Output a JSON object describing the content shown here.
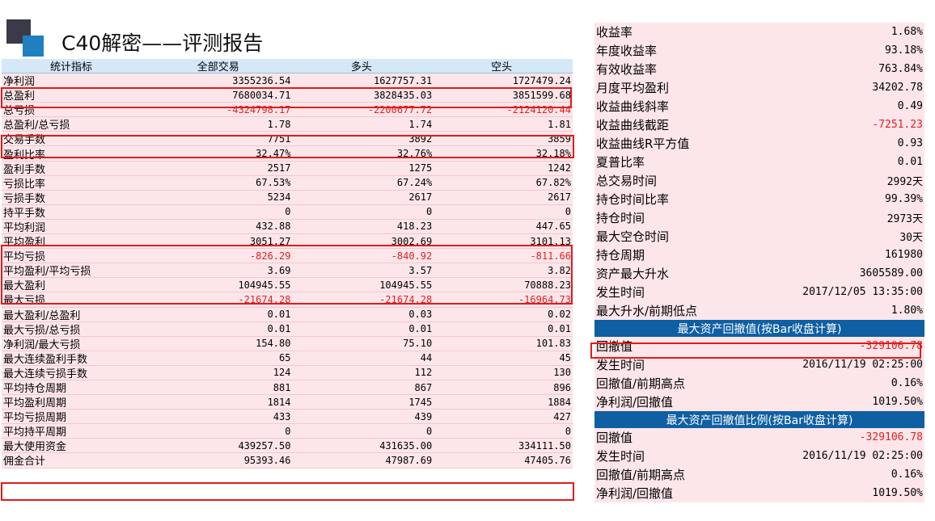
{
  "title": "C40解密——评测报告",
  "left_table": {
    "headers": [
      "统计指标",
      "全部交易",
      "多头",
      "空头"
    ],
    "rows": [
      [
        "净利润",
        "3355236.54",
        "1627757.31",
        "1727479.24"
      ],
      [
        "总盈利",
        "7680034.71",
        "3828435.03",
        "3851599.68"
      ],
      [
        "总亏损",
        "-4324798.17",
        "-2200677.72",
        "-2124120.44"
      ],
      [
        "总盈利/总亏损",
        "1.78",
        "1.74",
        "1.81"
      ],
      [
        "交易手数",
        "7751",
        "3892",
        "3859"
      ],
      [
        "盈利比率",
        "32.47%",
        "32.76%",
        "32.18%"
      ],
      [
        "盈利手数",
        "2517",
        "1275",
        "1242"
      ],
      [
        "亏损比率",
        "67.53%",
        "67.24%",
        "67.82%"
      ],
      [
        "亏损手数",
        "5234",
        "2617",
        "2617"
      ],
      [
        "持平手数",
        "0",
        "0",
        "0"
      ],
      [
        "平均利润",
        "432.88",
        "418.23",
        "447.65"
      ],
      [
        "平均盈利",
        "3051.27",
        "3002.69",
        "3101.13"
      ],
      [
        "平均亏损",
        "-826.29",
        "-840.92",
        "-811.66"
      ],
      [
        "平均盈利/平均亏损",
        "3.69",
        "3.57",
        "3.82"
      ],
      [
        "最大盈利",
        "104945.55",
        "104945.55",
        "70888.23"
      ],
      [
        "最大亏损",
        "-21674.28",
        "-21674.28",
        "-16964.73"
      ],
      [
        "最大盈利/总盈利",
        "0.01",
        "0.03",
        "0.02"
      ],
      [
        "最大亏损/总亏损",
        "0.01",
        "0.01",
        "0.01"
      ],
      [
        "净利润/最大亏损",
        "154.80",
        "75.10",
        "101.83"
      ],
      [
        "最大连续盈利手数",
        "65",
        "44",
        "45"
      ],
      [
        "最大连续亏损手数",
        "124",
        "112",
        "130"
      ],
      [
        "平均持仓周期",
        "881",
        "867",
        "896"
      ],
      [
        "平均盈利周期",
        "1814",
        "1745",
        "1884"
      ],
      [
        "平均亏损周期",
        "433",
        "439",
        "427"
      ],
      [
        "平均持平周期",
        "0",
        "0",
        "0"
      ],
      [
        "最大使用资金",
        "439257.50",
        "431635.00",
        "334111.50"
      ],
      [
        "佣金合计",
        "95393.46",
        "47987.69",
        "47405.76"
      ]
    ]
  },
  "right_table": {
    "rows": [
      [
        "收益率",
        "1.68%"
      ],
      [
        "年度收益率",
        "93.18%"
      ],
      [
        "有效收益率",
        "763.84%"
      ],
      [
        "月度平均盈利",
        "34202.78"
      ],
      [
        "收益曲线斜率",
        "0.49"
      ],
      [
        "收益曲线截距",
        "-7251.23"
      ],
      [
        "收益曲线R平方值",
        "0.93"
      ],
      [
        "夏普比率",
        "0.01"
      ],
      [
        "总交易时间",
        "2992天"
      ],
      [
        "持仓时间比率",
        "99.39%"
      ],
      [
        "持仓时间",
        "2973天"
      ],
      [
        "最大空仓时间",
        "30天"
      ],
      [
        "持仓周期",
        "161980"
      ],
      [
        "资产最大升水",
        "3605589.00"
      ],
      [
        "发生时间",
        "2017/12/05 13:35:00"
      ],
      [
        "最大升水/前期低点",
        "1.80%"
      ]
    ],
    "section1_title": "最大资产回撤值(按Bar收盘计算)",
    "section1_rows": [
      [
        "回撤值",
        "-329106.78"
      ],
      [
        "发生时间",
        "2016/11/19 02:25:00"
      ],
      [
        "回撤值/前期高点",
        "0.16%"
      ],
      [
        "净利润/回撤值",
        "1019.50%"
      ]
    ],
    "section2_title": "最大资产回撤值比例(按Bar收盘计算)",
    "section2_rows": [
      [
        "回撤值",
        "-329106.78"
      ],
      [
        "发生时间",
        "2016/11/19 02:25:00"
      ],
      [
        "回撤值/前期高点",
        "0.16%"
      ],
      [
        "净利润/回撤值",
        "1019.50%"
      ]
    ]
  },
  "colors": {
    "negative": "#e02020",
    "highlight_box": "#e21b1b",
    "section_header": "#0f5fa3",
    "row_background": "#fde6ea"
  }
}
